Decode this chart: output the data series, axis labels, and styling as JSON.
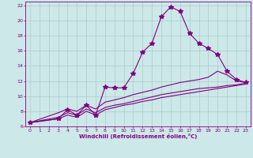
{
  "xlabel": "Windchill (Refroidissement éolien,°C)",
  "bg_color": "#cce8e8",
  "grid_color": "#aacccc",
  "line_color": "#800080",
  "spine_color": "#800080",
  "xlim": [
    -0.5,
    23.5
  ],
  "ylim": [
    6,
    22.5
  ],
  "xticks": [
    0,
    1,
    2,
    3,
    4,
    5,
    6,
    7,
    8,
    9,
    10,
    11,
    12,
    13,
    14,
    15,
    16,
    17,
    18,
    19,
    20,
    21,
    22,
    23
  ],
  "yticks": [
    6,
    8,
    10,
    12,
    14,
    16,
    18,
    20,
    22
  ],
  "series": [
    {
      "x": [
        0,
        3,
        4,
        5,
        6,
        7,
        8,
        9,
        10,
        11,
        12,
        13,
        14,
        15,
        16,
        17,
        18,
        19,
        20,
        21,
        22,
        23
      ],
      "y": [
        6.5,
        7.0,
        8.2,
        7.5,
        8.8,
        7.5,
        11.2,
        11.1,
        11.1,
        13.0,
        15.8,
        17.0,
        20.5,
        21.8,
        21.2,
        18.3,
        17.0,
        16.3,
        15.5,
        13.3,
        12.2,
        11.8
      ],
      "marker": "*",
      "markersize": 4
    },
    {
      "x": [
        0,
        3,
        4,
        5,
        6,
        7,
        8,
        9,
        10,
        11,
        12,
        13,
        14,
        15,
        16,
        17,
        18,
        19,
        20,
        21,
        22,
        23
      ],
      "y": [
        6.5,
        7.8,
        8.3,
        8.0,
        8.8,
        8.3,
        9.2,
        9.5,
        9.8,
        10.2,
        10.5,
        10.8,
        11.2,
        11.5,
        11.8,
        12.0,
        12.2,
        12.5,
        13.3,
        12.8,
        12.0,
        11.8
      ],
      "marker": "None",
      "markersize": 0
    },
    {
      "x": [
        0,
        3,
        4,
        5,
        6,
        7,
        8,
        9,
        10,
        11,
        12,
        13,
        14,
        15,
        16,
        17,
        18,
        19,
        20,
        21,
        22,
        23
      ],
      "y": [
        6.5,
        7.2,
        7.8,
        7.5,
        8.3,
        7.8,
        8.5,
        8.8,
        9.0,
        9.3,
        9.6,
        9.9,
        10.2,
        10.4,
        10.6,
        10.8,
        11.0,
        11.1,
        11.2,
        11.4,
        11.5,
        11.7
      ],
      "marker": "None",
      "markersize": 0
    },
    {
      "x": [
        0,
        3,
        4,
        5,
        6,
        7,
        8,
        9,
        10,
        11,
        12,
        13,
        14,
        15,
        16,
        17,
        18,
        19,
        20,
        21,
        22,
        23
      ],
      "y": [
        6.5,
        7.0,
        7.5,
        7.2,
        8.0,
        7.5,
        8.2,
        8.5,
        8.8,
        9.0,
        9.3,
        9.5,
        9.8,
        10.0,
        10.2,
        10.4,
        10.6,
        10.8,
        11.0,
        11.2,
        11.4,
        11.6
      ],
      "marker": "None",
      "markersize": 0
    }
  ]
}
